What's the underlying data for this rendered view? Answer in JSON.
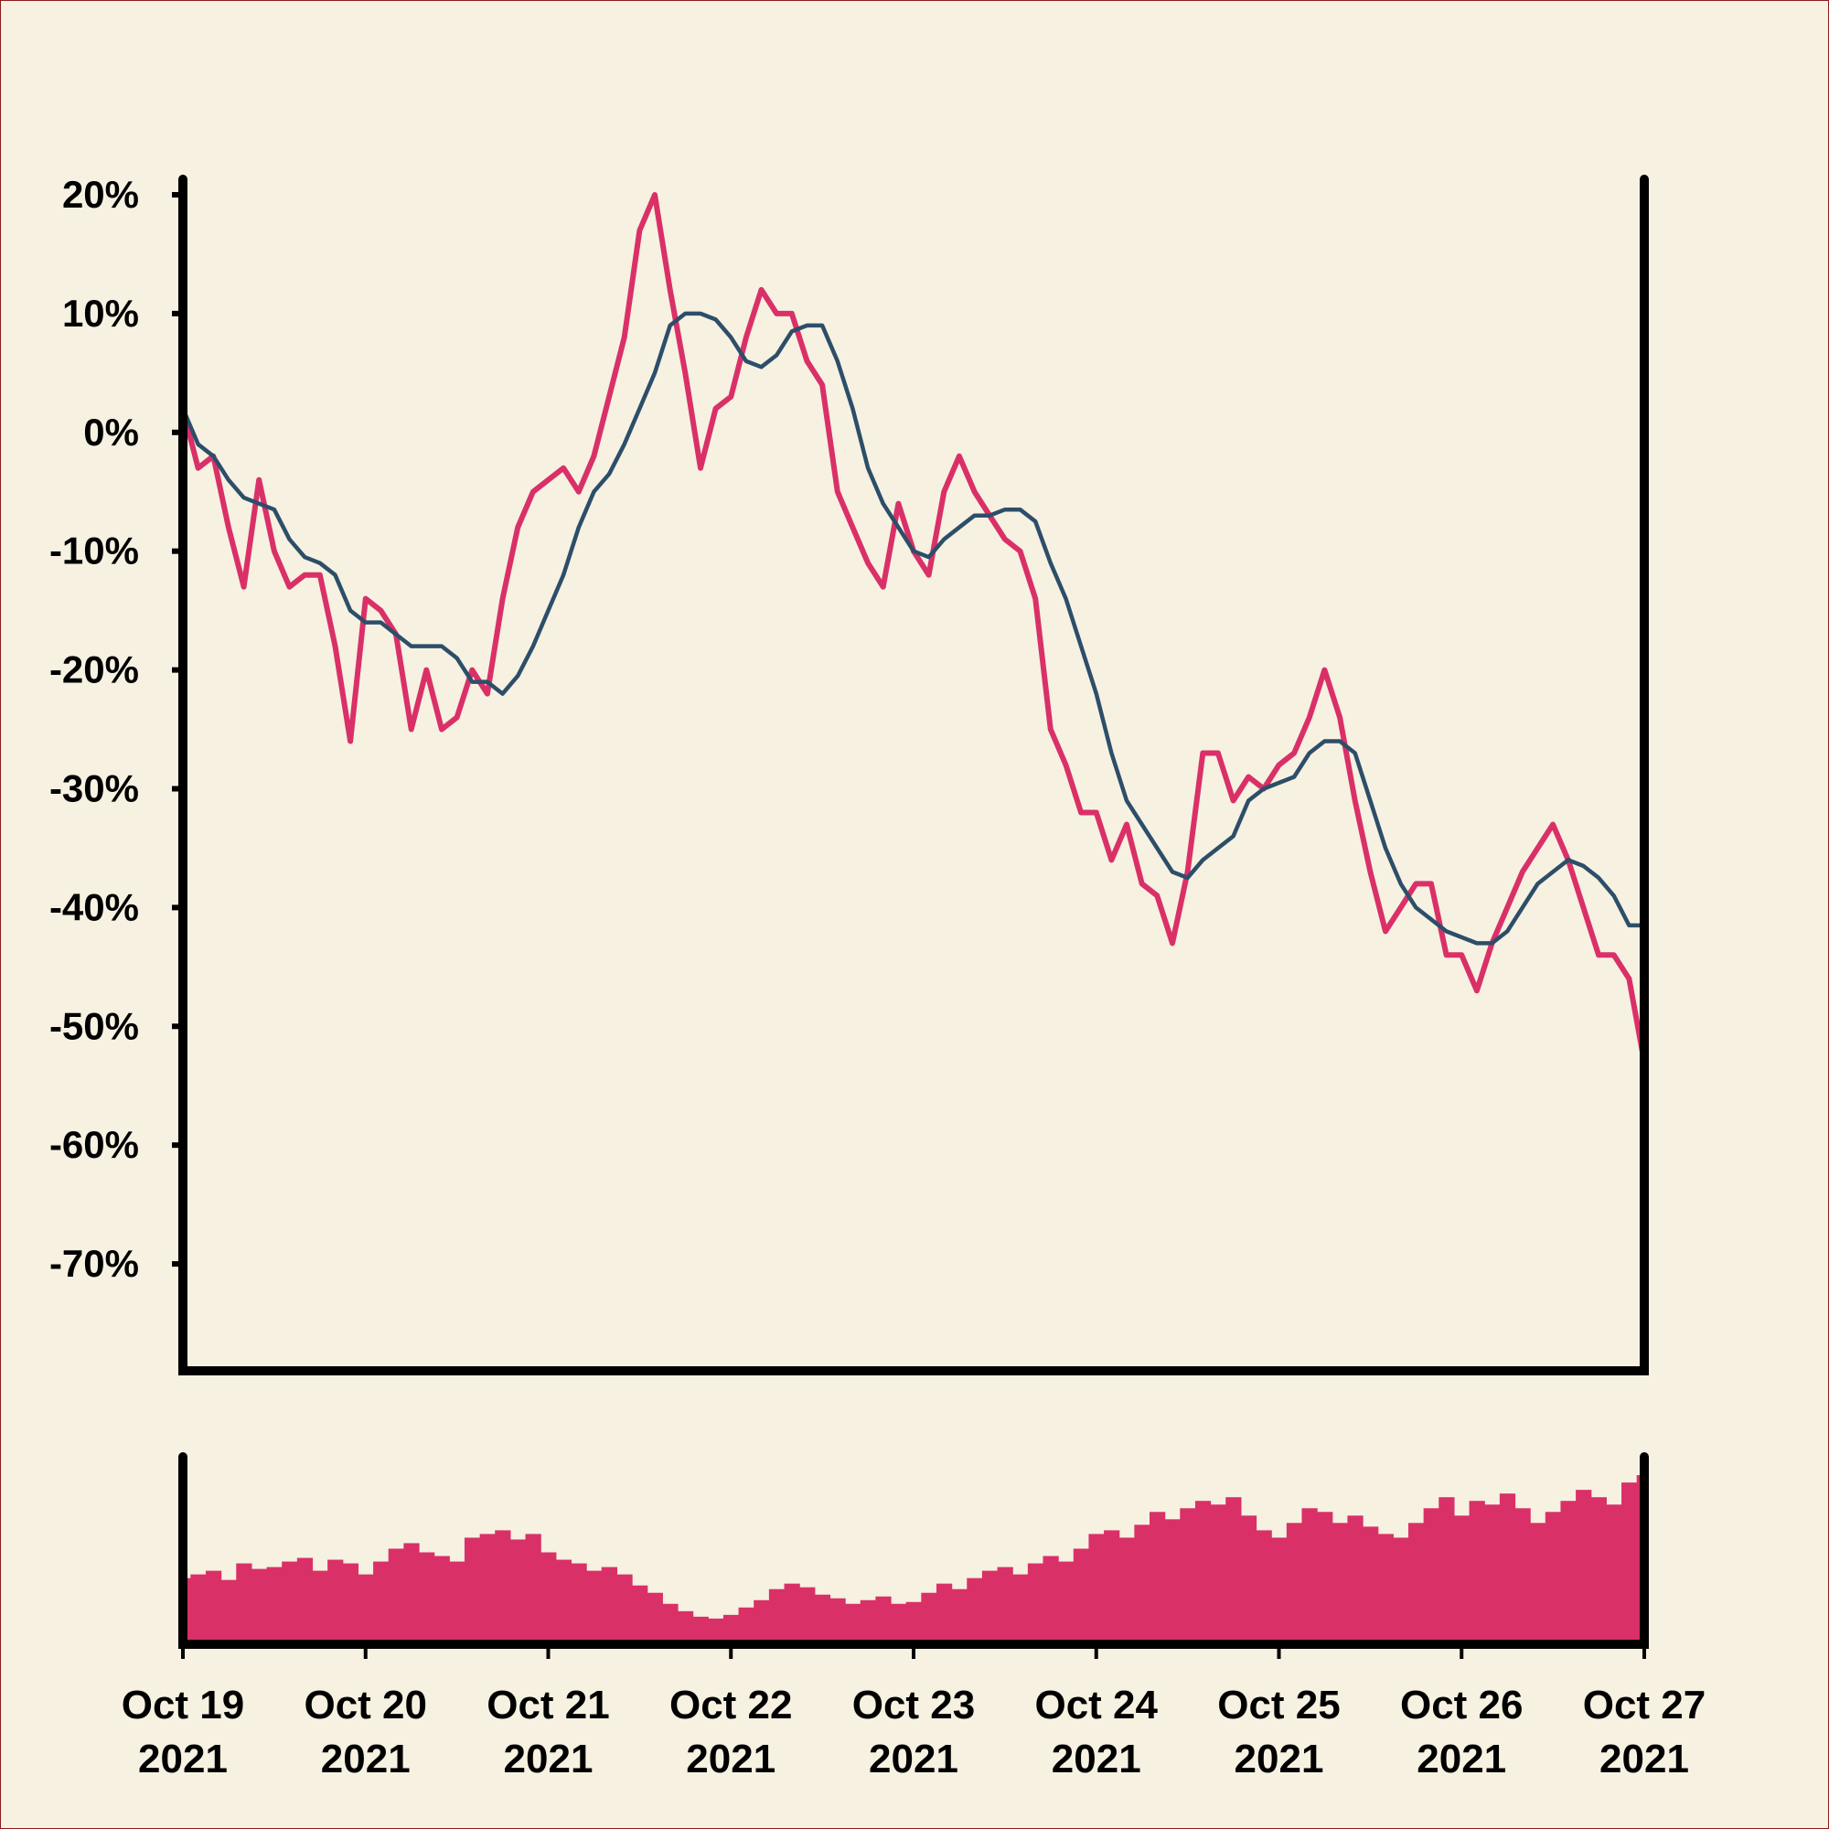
{
  "chart_data": [
    {
      "type": "line",
      "xlim": [
        0,
        96
      ],
      "xticks": [
        {
          "value": 0,
          "label": [
            "Oct 19",
            "2021"
          ]
        },
        {
          "value": 12,
          "label": [
            "Oct 20",
            "2021"
          ]
        },
        {
          "value": 24,
          "label": [
            "Oct 21",
            "2021"
          ]
        },
        {
          "value": 36,
          "label": [
            "Oct 22",
            "2021"
          ]
        },
        {
          "value": 48,
          "label": [
            "Oct 23",
            "2021"
          ]
        },
        {
          "value": 60,
          "label": [
            "Oct 24",
            "2021"
          ]
        },
        {
          "value": 72,
          "label": [
            "Oct 25",
            "2021"
          ]
        },
        {
          "value": 84,
          "label": [
            "Oct 26",
            "2021"
          ]
        },
        {
          "value": 96,
          "label": [
            "Oct 27",
            "2021"
          ]
        }
      ],
      "ylim": [
        -79,
        21
      ],
      "yticks": [
        {
          "value": 20,
          "label": "20%"
        },
        {
          "value": 10,
          "label": "10%"
        },
        {
          "value": 0,
          "label": "0%"
        },
        {
          "value": -10,
          "label": "-10%"
        },
        {
          "value": -20,
          "label": "-20%"
        },
        {
          "value": -30,
          "label": "-30%"
        },
        {
          "value": -40,
          "label": "-40%"
        },
        {
          "value": -50,
          "label": "-50%"
        },
        {
          "value": -60,
          "label": "-60%"
        },
        {
          "value": -70,
          "label": "-70%"
        }
      ],
      "series": [
        {
          "color": "#da3068",
          "width": 6,
          "values": [
            2,
            -3,
            -2,
            -8,
            -13,
            -4,
            -10,
            -13,
            -12,
            -12,
            -18,
            -26,
            -14,
            -15,
            -17,
            -25,
            -20,
            -25,
            -24,
            -20,
            -22,
            -14,
            -8,
            -5,
            -4,
            -3,
            -5,
            -2,
            3,
            8,
            17,
            20,
            12,
            5,
            -3,
            2,
            3,
            8,
            12,
            10,
            10,
            6,
            4,
            -5,
            -8,
            -11,
            -13,
            -6,
            -10,
            -12,
            -5,
            -2,
            -5,
            -7,
            -9,
            -10,
            -14,
            -25,
            -28,
            -32,
            -32,
            -36,
            -33,
            -38,
            -39,
            -43,
            -37,
            -27,
            -27,
            -31,
            -29,
            -30,
            -28,
            -27,
            -24,
            -20,
            -24,
            -31,
            -37,
            -42,
            -40,
            -38,
            -38,
            -44,
            -44,
            -47,
            -43,
            -40,
            -37,
            -35,
            -33,
            -36,
            -40,
            -44,
            -44,
            -46,
            -53
          ]
        },
        {
          "color": "#2d4e69",
          "width": 4.5,
          "values": [
            2,
            -1,
            -2,
            -4,
            -5.5,
            -6,
            -6.5,
            -9,
            -10.5,
            -11,
            -12,
            -15,
            -16,
            -16,
            -17,
            -18,
            -18,
            -18,
            -19,
            -21,
            -21,
            -22,
            -20.5,
            -18,
            -15,
            -12,
            -8,
            -5,
            -3.5,
            -1,
            2,
            5,
            9,
            10,
            10,
            9.5,
            8,
            6,
            5.5,
            6.5,
            8.5,
            9,
            9,
            6,
            2,
            -3,
            -6,
            -8,
            -10,
            -10.5,
            -9,
            -8,
            -7,
            -7,
            -6.5,
            -6.5,
            -7.5,
            -11,
            -14,
            -18,
            -22,
            -27,
            -31,
            -33,
            -35,
            -37,
            -37.5,
            -36,
            -35,
            -34,
            -31,
            -30,
            -29.5,
            -29,
            -27,
            -26,
            -26,
            -27,
            -31,
            -35,
            -38,
            -40,
            -41,
            -42,
            -42.5,
            -43,
            -43,
            -42,
            -40,
            -38,
            -37,
            -36,
            -36.5,
            -37.5,
            -39,
            -41.5,
            -41.5
          ]
        }
      ]
    },
    {
      "type": "bar",
      "xlim": [
        0,
        96
      ],
      "ylim": [
        0,
        100
      ],
      "color": "#da3068",
      "values": [
        36,
        38,
        40,
        35,
        44,
        41,
        42,
        45,
        47,
        40,
        46,
        44,
        38,
        45,
        52,
        55,
        50,
        48,
        45,
        58,
        60,
        62,
        57,
        60,
        50,
        46,
        44,
        40,
        42,
        38,
        32,
        28,
        22,
        18,
        15,
        14,
        16,
        20,
        24,
        30,
        33,
        31,
        27,
        25,
        22,
        24,
        26,
        22,
        23,
        28,
        33,
        30,
        36,
        40,
        42,
        38,
        44,
        48,
        45,
        52,
        60,
        62,
        58,
        65,
        72,
        68,
        74,
        78,
        76,
        80,
        70,
        62,
        58,
        66,
        74,
        72,
        66,
        70,
        64,
        60,
        58,
        66,
        74,
        80,
        70,
        78,
        76,
        82,
        74,
        66,
        72,
        78,
        84,
        80,
        76,
        88,
        92
      ]
    }
  ]
}
